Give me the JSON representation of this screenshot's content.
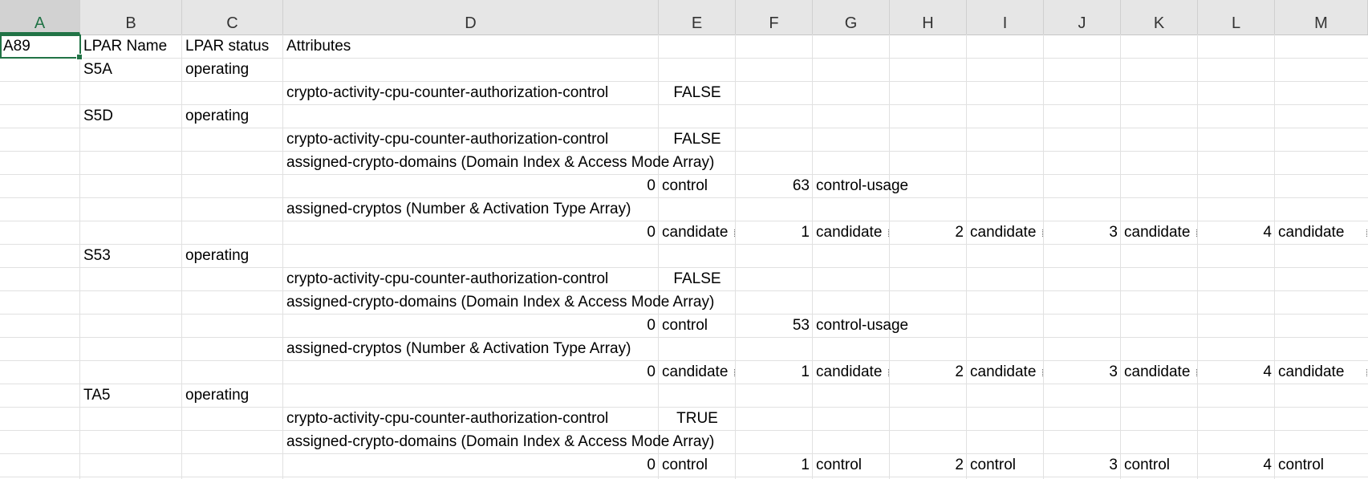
{
  "column_headers": [
    "A",
    "B",
    "C",
    "D",
    "E",
    "F",
    "G",
    "H",
    "I",
    "J",
    "K",
    "L",
    "M"
  ],
  "active_column": "A",
  "selected_cell": "A89",
  "headers": {
    "lpar_name": "LPAR Name",
    "lpar_status": "LPAR status",
    "attributes": "Attributes"
  },
  "rows": [
    {
      "b": "S5A",
      "c": "operating"
    },
    {
      "d": "crypto-activity-cpu-counter-authorization-control",
      "e": "FALSE"
    },
    {
      "b": "S5D",
      "c": "operating"
    },
    {
      "d": "crypto-activity-cpu-counter-authorization-control",
      "e": "FALSE"
    },
    {
      "d": "assigned-crypto-domains (Domain Index & Access Mode Array)"
    },
    {
      "d_num": "0",
      "e": "control",
      "f_num": "63",
      "g": "control-usage"
    },
    {
      "d": "assigned-cryptos (Number & Activation Type Array)"
    },
    {
      "d_num": "0",
      "e": "candidate",
      "f_num": "1",
      "g": "candidate",
      "h_num": "2",
      "i": "candidate",
      "j_num": "3",
      "k": "candidate",
      "l_num": "4",
      "m": "candidate"
    },
    {
      "b": "S53",
      "c": "operating"
    },
    {
      "d": "crypto-activity-cpu-counter-authorization-control",
      "e": "FALSE"
    },
    {
      "d": "assigned-crypto-domains (Domain Index & Access Mode Array)"
    },
    {
      "d_num": "0",
      "e": "control",
      "f_num": "53",
      "g": "control-usage"
    },
    {
      "d": "assigned-cryptos (Number & Activation Type Array)"
    },
    {
      "d_num": "0",
      "e": "candidate",
      "f_num": "1",
      "g": "candidate",
      "h_num": "2",
      "i": "candidate",
      "j_num": "3",
      "k": "candidate",
      "l_num": "4",
      "m": "candidate"
    },
    {
      "b": "TA5",
      "c": "operating"
    },
    {
      "d": "crypto-activity-cpu-counter-authorization-control",
      "e": "TRUE"
    },
    {
      "d": "assigned-crypto-domains (Domain Index & Access Mode Array)"
    },
    {
      "d_num": "0",
      "e": "control",
      "f_num": "1",
      "g": "control",
      "h_num": "2",
      "i": "control",
      "j_num": "3",
      "k": "control",
      "l_num": "4",
      "m": "control"
    }
  ]
}
